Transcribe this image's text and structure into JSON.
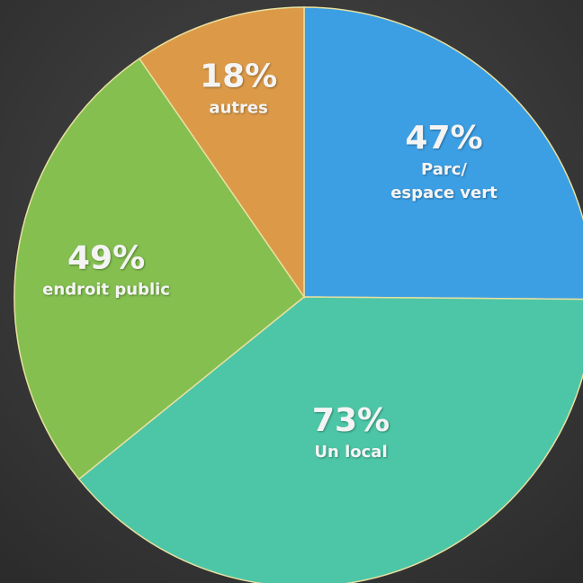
{
  "chart_data": {
    "type": "pie",
    "categories": [
      "Parc/ espace vert",
      "Un local",
      "endroit public",
      "autres"
    ],
    "values": [
      47,
      73,
      49,
      18
    ],
    "value_labels": [
      "47%",
      "73%",
      "49%",
      "18%"
    ],
    "colors": [
      "#3c9fe4",
      "#4cc6a6",
      "#84bf50",
      "#dc9a48"
    ]
  }
}
